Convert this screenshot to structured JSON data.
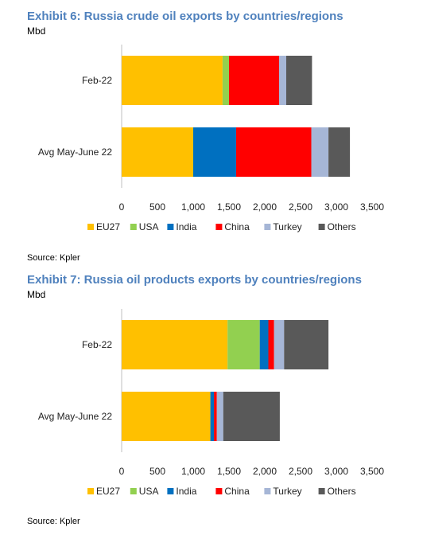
{
  "chart_data": [
    {
      "type": "bar",
      "orientation": "horizontal",
      "stacked": true,
      "title": "Exhibit 6: Russia crude oil exports by countries/regions",
      "unit": "Mbd",
      "source": "Source: Kpler",
      "categories": [
        "Feb-22",
        "Avg May-June 22"
      ],
      "xlim": [
        0,
        3500
      ],
      "xticks": [
        "0",
        "500",
        "1,000",
        "1,500",
        "2,000",
        "2,500",
        "3,000",
        "3,500"
      ],
      "legend_position": "bottom",
      "series": [
        {
          "name": "EU27",
          "color": "#ffc000",
          "values": [
            1410,
            1000
          ]
        },
        {
          "name": "USA",
          "color": "#92d050",
          "values": [
            90,
            0
          ]
        },
        {
          "name": "India",
          "color": "#0070c0",
          "values": [
            0,
            600
          ]
        },
        {
          "name": "China",
          "color": "#ff0000",
          "values": [
            700,
            1050
          ]
        },
        {
          "name": "Turkey",
          "color": "#a6b6d6",
          "values": [
            100,
            240
          ]
        },
        {
          "name": "Others",
          "color": "#595959",
          "values": [
            360,
            300
          ]
        }
      ]
    },
    {
      "type": "bar",
      "orientation": "horizontal",
      "stacked": true,
      "title": "Exhibit 7: Russia oil products exports by countries/regions",
      "unit": "Mbd",
      "source": "Source: Kpler",
      "categories": [
        "Feb-22",
        "Avg May-June 22"
      ],
      "xlim": [
        0,
        3500
      ],
      "xticks": [
        "0",
        "500",
        "1,000",
        "1,500",
        "2,000",
        "2,500",
        "3,000",
        "3,500"
      ],
      "legend_position": "bottom",
      "series": [
        {
          "name": "EU27",
          "color": "#ffc000",
          "values": [
            1480,
            1240
          ]
        },
        {
          "name": "USA",
          "color": "#92d050",
          "values": [
            450,
            0
          ]
        },
        {
          "name": "India",
          "color": "#0070c0",
          "values": [
            120,
            50
          ]
        },
        {
          "name": "China",
          "color": "#ff0000",
          "values": [
            80,
            40
          ]
        },
        {
          "name": "Turkey",
          "color": "#a6b6d6",
          "values": [
            140,
            90
          ]
        },
        {
          "name": "Others",
          "color": "#595959",
          "values": [
            620,
            790
          ]
        }
      ]
    }
  ]
}
